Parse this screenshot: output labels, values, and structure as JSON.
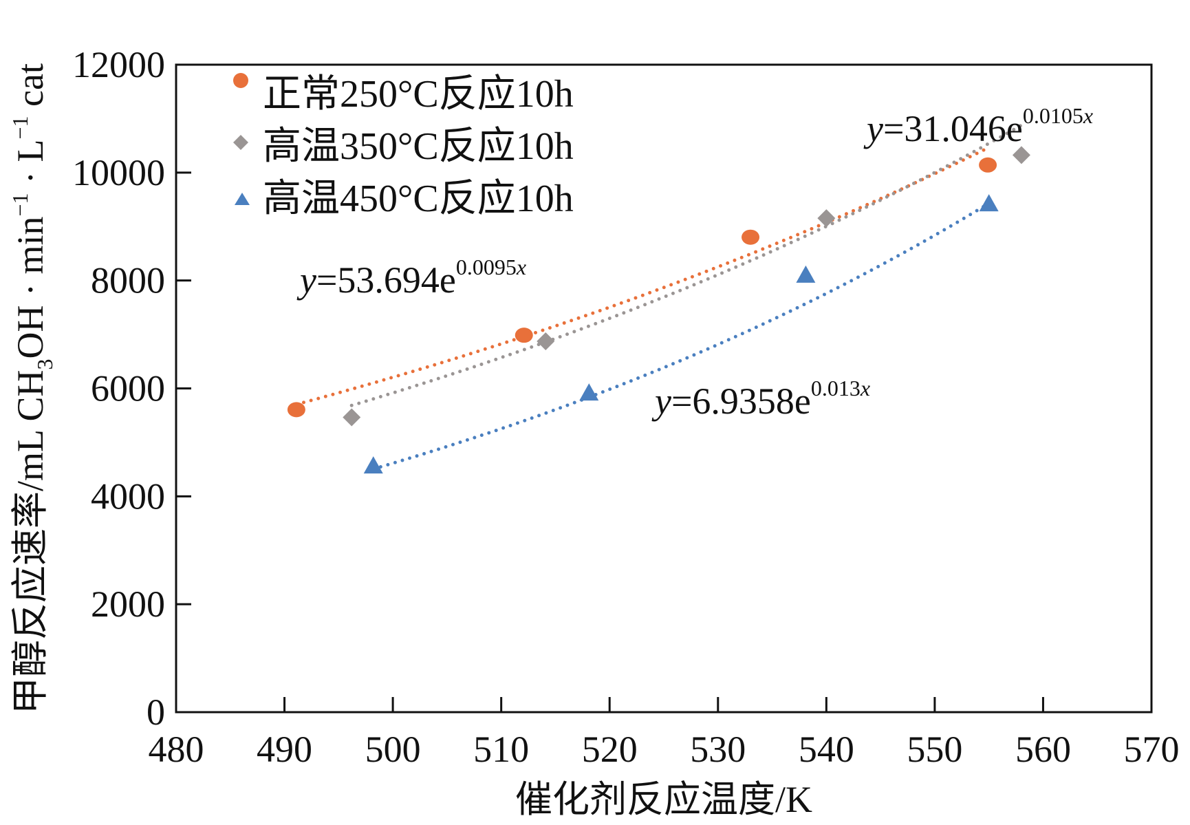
{
  "chart_data": {
    "type": "scatter",
    "title": "",
    "xlabel": "催化剂反应温度/K",
    "ylabel_parts": [
      "甲醇反应速率/mL CH",
      "3",
      "OH · min",
      "−1",
      " · L",
      "−1",
      " cat"
    ],
    "xlim": [
      480,
      570
    ],
    "ylim": [
      0,
      12000
    ],
    "xticks": [
      "480",
      "490",
      "500",
      "510",
      "520",
      "530",
      "540",
      "550",
      "560",
      "570"
    ],
    "yticks": [
      "0",
      "2000",
      "4000",
      "6000",
      "8000",
      "10000",
      "12000"
    ],
    "legend_placement": "top-left",
    "grid": false,
    "series": [
      {
        "name": "正常250°C反应10h",
        "marker": "circle",
        "color": "#E8703A",
        "x": [
          491.1,
          512.1,
          533.0,
          554.9
        ],
        "y": [
          5606,
          6986,
          8803,
          10141
        ],
        "trend": {
          "a": 53.694,
          "b": 0.0095,
          "label_var": "y",
          "label_base": "=53.694e",
          "label_exp": "0.0095",
          "label_expvar": "x"
        }
      },
      {
        "name": "高温350°C反应10h",
        "marker": "diamond",
        "color": "#9A9594",
        "x": [
          496.2,
          514.1,
          540.0,
          558.0
        ],
        "y": [
          5465,
          6873,
          9155,
          10324
        ],
        "trend": {
          "a": 31.046,
          "b": 0.0105,
          "label_var": "y",
          "label_base": "=31.046e",
          "label_exp": "0.0105",
          "label_expvar": "x"
        }
      },
      {
        "name": "高温450°C反应10h",
        "marker": "triangle",
        "color": "#4A7FBF",
        "x": [
          498.2,
          518.1,
          538.1,
          555.0
        ],
        "y": [
          4563,
          5915,
          8099,
          9423
        ],
        "trend": {
          "a": 6.9358,
          "b": 0.013,
          "label_var": "y",
          "label_base": "=6.9358e",
          "label_exp": "0.013",
          "label_expvar": "x"
        }
      }
    ]
  }
}
